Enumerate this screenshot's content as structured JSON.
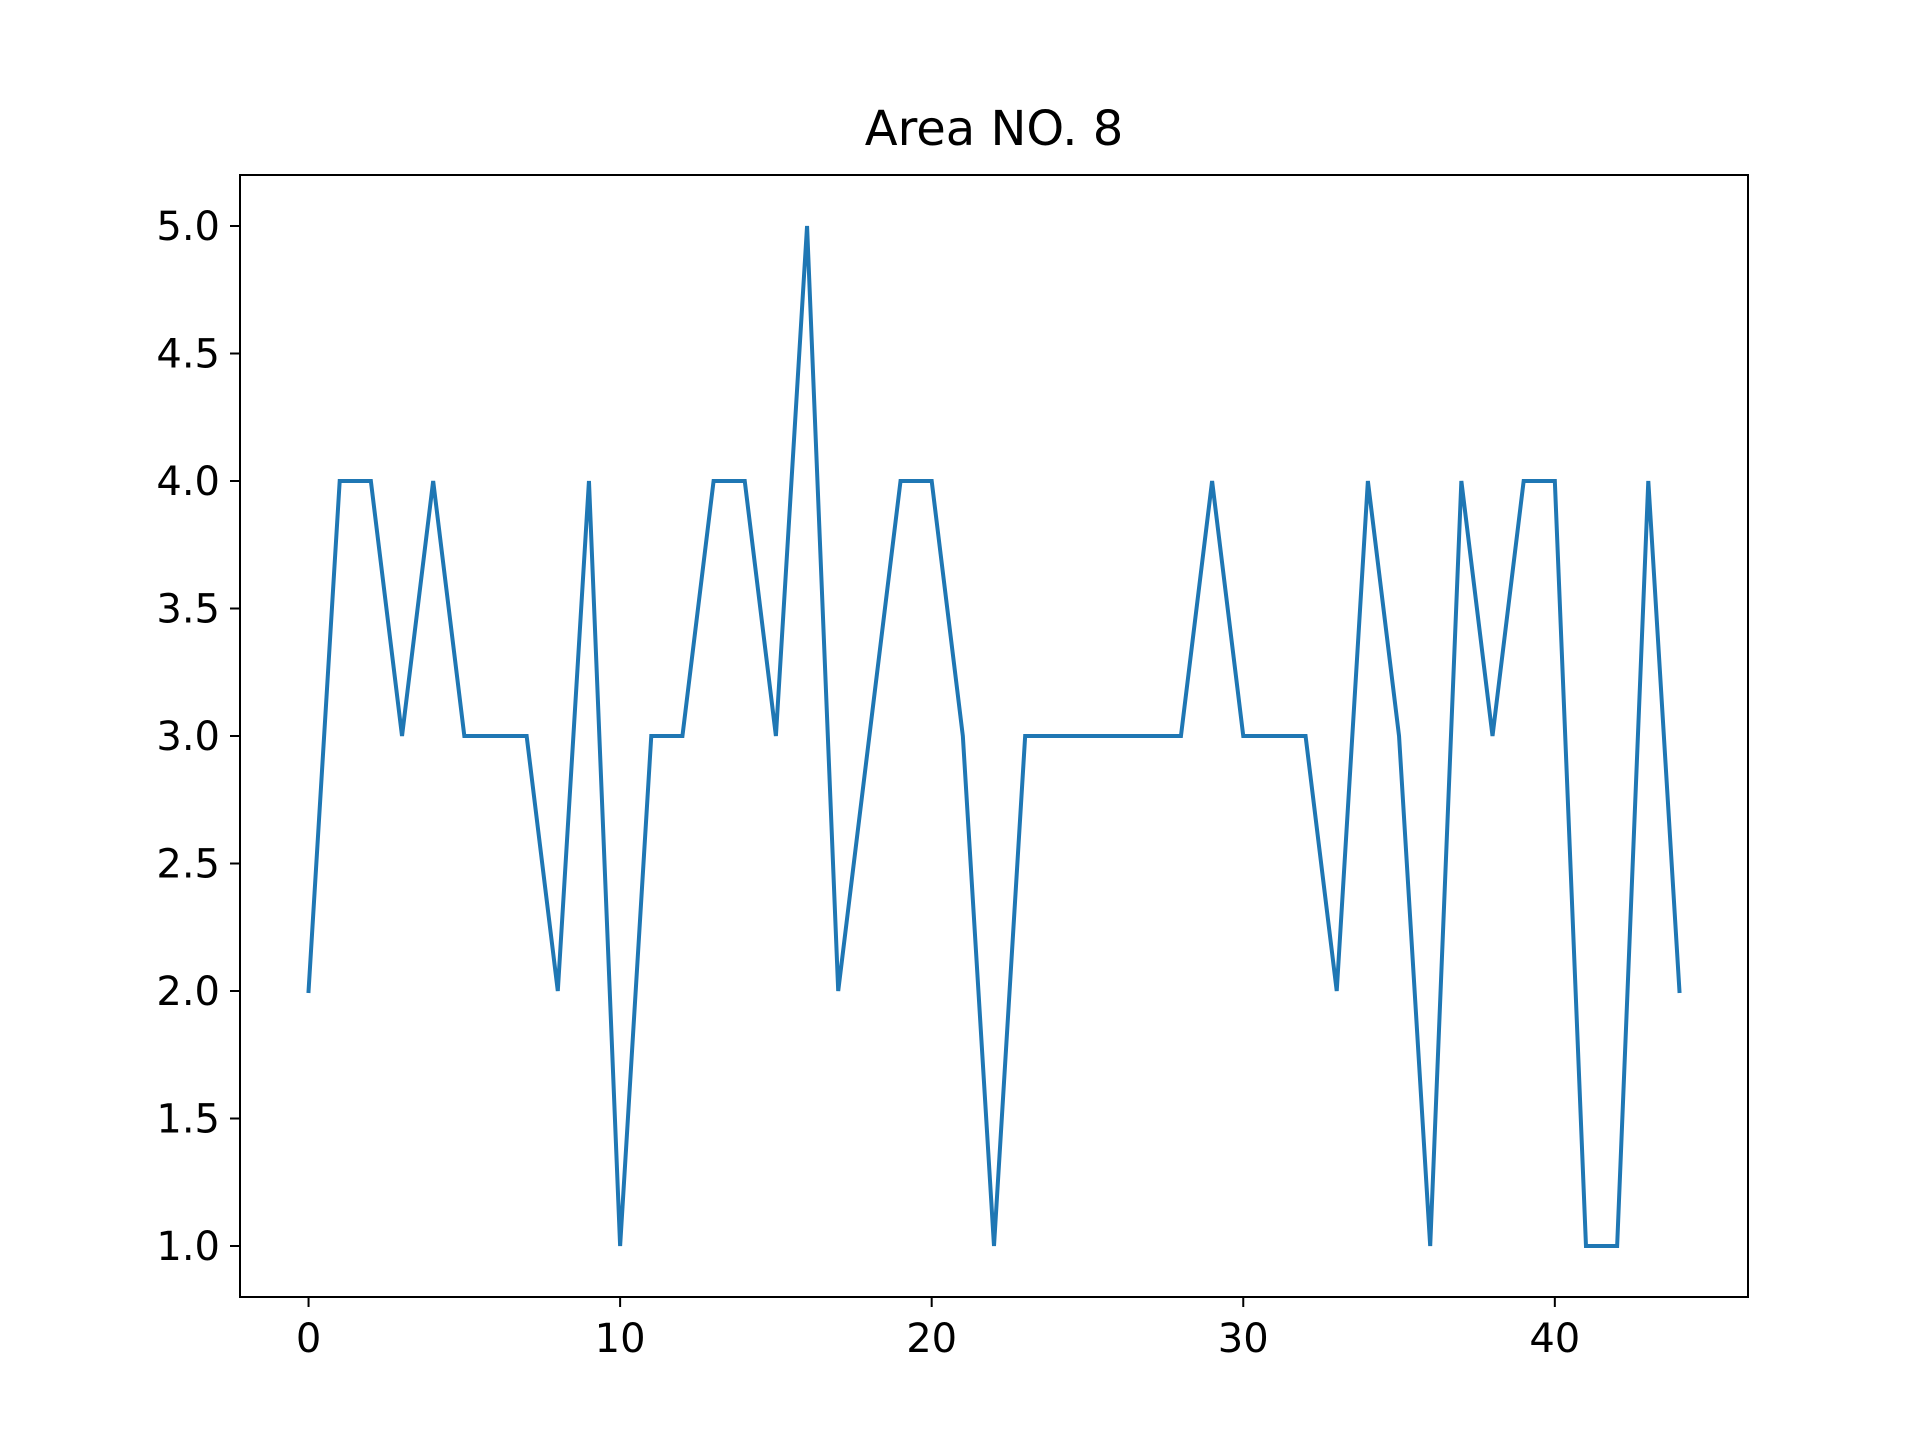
{
  "chart_data": {
    "type": "line",
    "title": "Area NO. 8",
    "xlabel": "",
    "ylabel": "",
    "xlim": [
      -2.2,
      46.2
    ],
    "ylim": [
      0.8,
      5.2
    ],
    "xticks": [
      0,
      10,
      20,
      30,
      40
    ],
    "xtick_labels": [
      "0",
      "10",
      "20",
      "30",
      "40"
    ],
    "yticks": [
      1.0,
      1.5,
      2.0,
      2.5,
      3.0,
      3.5,
      4.0,
      4.5,
      5.0
    ],
    "ytick_labels": [
      "1.0",
      "1.5",
      "2.0",
      "2.5",
      "3.0",
      "3.5",
      "4.0",
      "4.5",
      "5.0"
    ],
    "grid": false,
    "legend": "none",
    "series": [
      {
        "color": "#1f77b4",
        "x": [
          0,
          1,
          2,
          3,
          4,
          5,
          6,
          7,
          8,
          9,
          10,
          11,
          12,
          13,
          14,
          15,
          16,
          17,
          18,
          19,
          20,
          21,
          22,
          23,
          24,
          25,
          26,
          27,
          28,
          29,
          30,
          31,
          32,
          33,
          34,
          35,
          36,
          37,
          38,
          39,
          40,
          41,
          42,
          43,
          44
        ],
        "values": [
          2,
          4,
          4,
          3,
          4,
          3,
          3,
          3,
          2,
          4,
          1,
          3,
          3,
          4,
          4,
          3,
          5,
          2,
          3,
          4,
          4,
          3,
          1,
          3,
          3,
          3,
          3,
          3,
          3,
          4,
          3,
          3,
          3,
          2,
          4,
          3,
          1,
          4,
          3,
          4,
          4,
          1,
          1,
          4,
          2
        ]
      }
    ]
  }
}
